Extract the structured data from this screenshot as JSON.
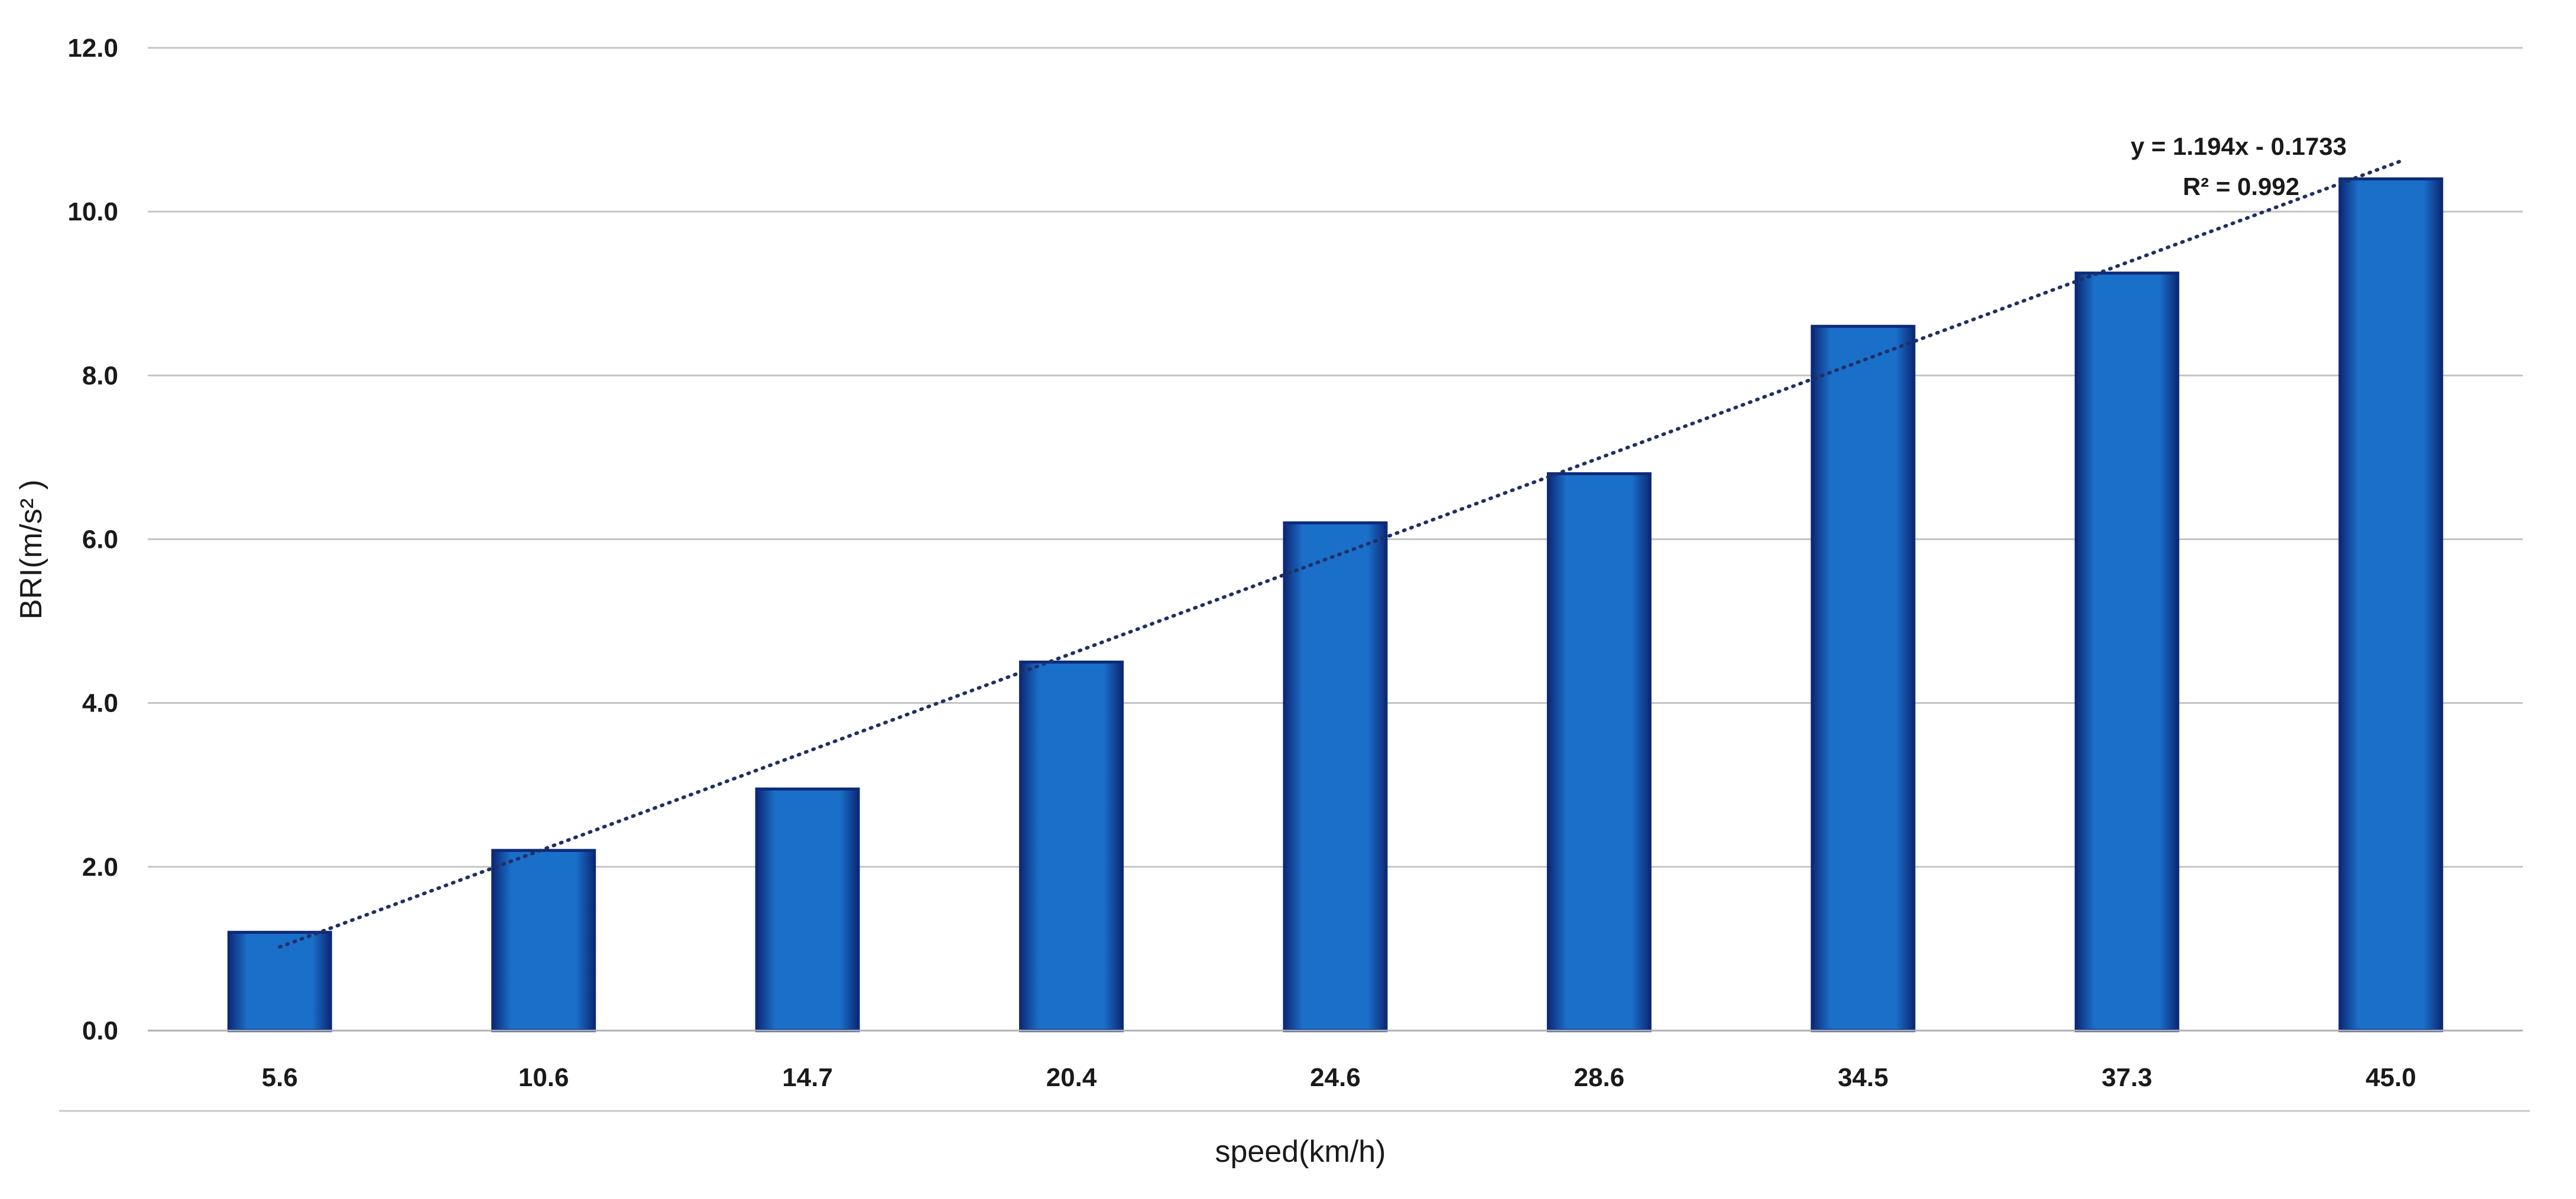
{
  "chart_data": {
    "type": "bar",
    "categories": [
      "5.6",
      "10.6",
      "14.7",
      "20.4",
      "24.6",
      "28.6",
      "34.5",
      "37.3",
      "45.0"
    ],
    "values": [
      1.2,
      2.2,
      2.95,
      4.5,
      6.2,
      6.8,
      8.6,
      9.25,
      10.4
    ],
    "xlabel": "speed(km/h)",
    "ylabel": "BRI(m/s² )",
    "ylim": [
      0,
      12
    ],
    "yticks": [
      "0.0",
      "2.0",
      "4.0",
      "6.0",
      "8.0",
      "10.0",
      "12.0"
    ],
    "grid": true,
    "trendline": {
      "type": "linear",
      "slope": 1.194,
      "intercept": -0.1733,
      "equation": "y = 1.194x - 0.1733",
      "r_squared": "R² = 0.992",
      "style": "dotted"
    },
    "colors": {
      "bar_fill": "#1a6fc9",
      "bar_edge": "#0d2a78",
      "trendline": "#1f2f66",
      "grid": "#c4c4c4"
    }
  }
}
